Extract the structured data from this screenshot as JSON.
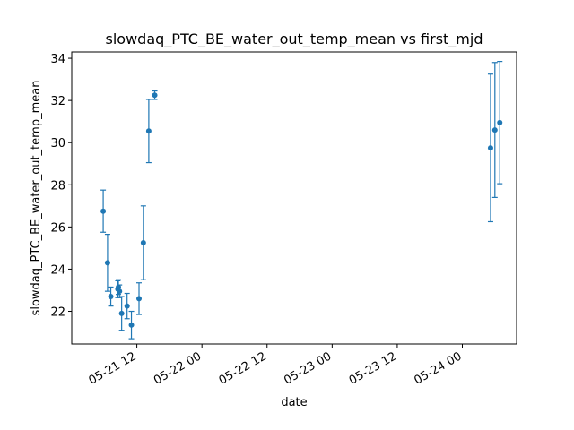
{
  "chart_data": {
    "type": "scatter",
    "title": "slowdaq_PTC_BE_water_out_temp_mean vs first_mjd",
    "xlabel": "date",
    "ylabel": "slowdaq_PTC_BE_water_out_temp_mean",
    "grid": false,
    "legend": "none",
    "x_ticks": [
      "05-21 12",
      "05-22 00",
      "05-22 12",
      "05-23 00",
      "05-23 12",
      "05-24 00"
    ],
    "x_tick_hours": [
      12,
      24,
      36,
      48,
      60,
      72
    ],
    "x_tick_label_rotation_deg": 30,
    "y_ticks": [
      22,
      24,
      26,
      28,
      30,
      32,
      34
    ],
    "xlim_hours_after_05_21_00": [
      0.0,
      82.0
    ],
    "ylim": [
      20.45,
      34.3
    ],
    "color": "#1f77b4",
    "series": [
      {
        "points": [
          {
            "x": "05-21 05:48",
            "y": 26.75,
            "err": 1.0
          },
          {
            "x": "05-21 06:36",
            "y": 24.3,
            "err": 1.35
          },
          {
            "x": "05-21 07:12",
            "y": 22.7,
            "err": 0.45
          },
          {
            "x": "05-21 08:30",
            "y": 23.05,
            "err": 0.4
          },
          {
            "x": "05-21 08:36",
            "y": 23.15,
            "err": 0.35
          },
          {
            "x": "05-21 08:48",
            "y": 22.95,
            "err": 0.3
          },
          {
            "x": "05-21 09:12",
            "y": 21.9,
            "err": 0.8
          },
          {
            "x": "05-21 10:12",
            "y": 22.25,
            "err": 0.6
          },
          {
            "x": "05-21 11:00",
            "y": 21.35,
            "err": 0.65
          },
          {
            "x": "05-21 12:24",
            "y": 22.6,
            "err": 0.75
          },
          {
            "x": "05-21 13:12",
            "y": 25.25,
            "err": 1.75
          },
          {
            "x": "05-21 14:12",
            "y": 30.55,
            "err": 1.5
          },
          {
            "x": "05-21 15:18",
            "y": 32.25,
            "err": 0.2
          },
          {
            "x": "05-24 05:12",
            "y": 29.75,
            "err": 3.5
          },
          {
            "x": "05-24 06:00",
            "y": 30.6,
            "err": 3.2
          },
          {
            "x": "05-24 06:54",
            "y": 30.95,
            "err": 2.9
          }
        ]
      }
    ]
  }
}
